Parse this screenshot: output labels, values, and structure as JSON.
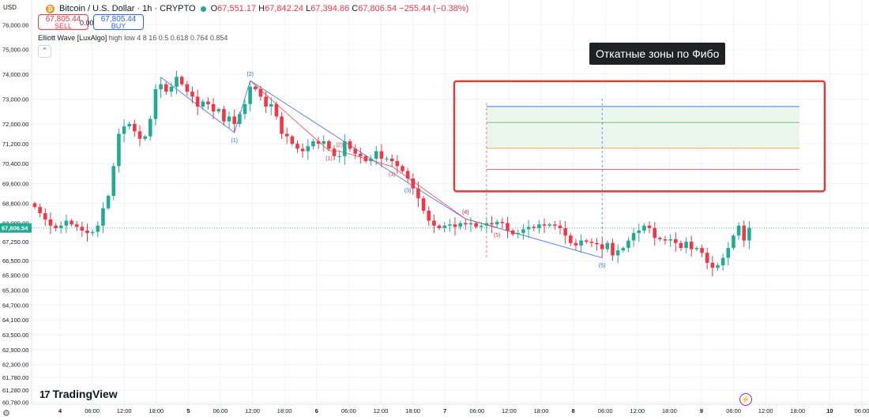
{
  "header": {
    "title": "Bitcoin / U.S. Dollar · 1h · CRYPTO",
    "coin_glyph": "₿",
    "o_label": "O",
    "o": "67,551.17",
    "h_label": "H",
    "h": "67,842.24",
    "l_label": "L",
    "l": "67,394.86",
    "c_label": "C",
    "c": "67,806.54",
    "change": "−255.44 (−0.38%)"
  },
  "currency": "USD",
  "trade": {
    "sell_price": "67,805.44",
    "sell_label": "SELL",
    "spread": "0.00",
    "buy_price": "67,805.44",
    "buy_label": "BUY"
  },
  "indicator": {
    "name": "Elliott Wave [LuxAlgo]",
    "params": "high low 4 8 16 0.5 0.618 0.764 0.854",
    "collapse_glyph": "⌃"
  },
  "annotation": {
    "text": "Откатные зоны по Фибо"
  },
  "brand": {
    "logo_mark": "17",
    "name": "TradingView"
  },
  "colors": {
    "up": "#22ab94",
    "down": "#f23645",
    "wave_blue": "#2962ff",
    "wave_red": "#f23645",
    "highlight": "#e53935"
  },
  "chart_data": {
    "type": "candlestick",
    "y_axis_ticks": [
      "76,000.00",
      "75,000.00",
      "74,000.00",
      "73,000.00",
      "72,000.00",
      "71,200.00",
      "70,400.00",
      "69,600.00",
      "68,800.00",
      "68,000.00",
      "67,250.00",
      "66,500.00",
      "65,900.00",
      "65,300.00",
      "64,700.00",
      "64,100.00",
      "63,500.00",
      "62,900.00",
      "62,300.00",
      "61,780.00",
      "61,280.00",
      "60,780.00"
    ],
    "y_range": [
      60700,
      76200
    ],
    "y_axis_side": "left",
    "current_price": "67,806.54",
    "x_axis_ticks": [
      "4",
      "06:00",
      "12:00",
      "18:00",
      "5",
      "06:00",
      "12:00",
      "18:00",
      "6",
      "06:00",
      "12:00",
      "18:00",
      "7",
      "06:00",
      "12:00",
      "18:00",
      "8",
      "06:00",
      "12:00",
      "18:00",
      "9",
      "06:00",
      "12:00",
      "18:00",
      "10",
      "06:00"
    ],
    "close_series": [
      68650,
      68400,
      68150,
      67900,
      67800,
      67900,
      68100,
      67950,
      67850,
      67700,
      67600,
      67650,
      67900,
      68600,
      69100,
      70300,
      71600,
      71900,
      72000,
      71700,
      71400,
      71500,
      72200,
      73400,
      73600,
      73300,
      73500,
      73900,
      73600,
      73300,
      73100,
      72700,
      72900,
      72800,
      72500,
      72600,
      72100,
      72300,
      72000,
      72400,
      72800,
      73500,
      73400,
      73100,
      72700,
      72800,
      72300,
      71600,
      71500,
      71200,
      71000,
      70900,
      71100,
      71300,
      71200,
      71300,
      71000,
      70700,
      70700,
      71300,
      71000,
      70800,
      70700,
      70500,
      70600,
      70900,
      70600,
      70600,
      70500,
      70300,
      70100,
      69800,
      69400,
      69000,
      68500,
      68100,
      67900,
      67800,
      67900,
      67950,
      67850,
      68000,
      67950,
      68000,
      67850,
      67900,
      68000,
      67950,
      68050,
      68000,
      67700,
      67550,
      67600,
      67750,
      67850,
      67800,
      67950,
      67900,
      67950,
      67900,
      67800,
      67500,
      67200,
      67100,
      67300,
      67250,
      67200,
      67150,
      66950,
      67200,
      66700,
      66900,
      67000,
      67300,
      67600,
      67700,
      67900,
      67800,
      67400,
      67350,
      67300,
      67350,
      67200,
      67000,
      67250,
      66950,
      67000,
      66800,
      66400,
      66200,
      66300,
      66600,
      67000,
      67500,
      67900,
      67300,
      67806.54
    ],
    "series_annotations": {
      "elliott_wave_labels": [
        "(1)",
        "(2)",
        "(3)",
        "(4)",
        "(5)"
      ],
      "fib_levels": [
        0.5,
        0.618,
        0.764,
        0.854
      ]
    }
  }
}
